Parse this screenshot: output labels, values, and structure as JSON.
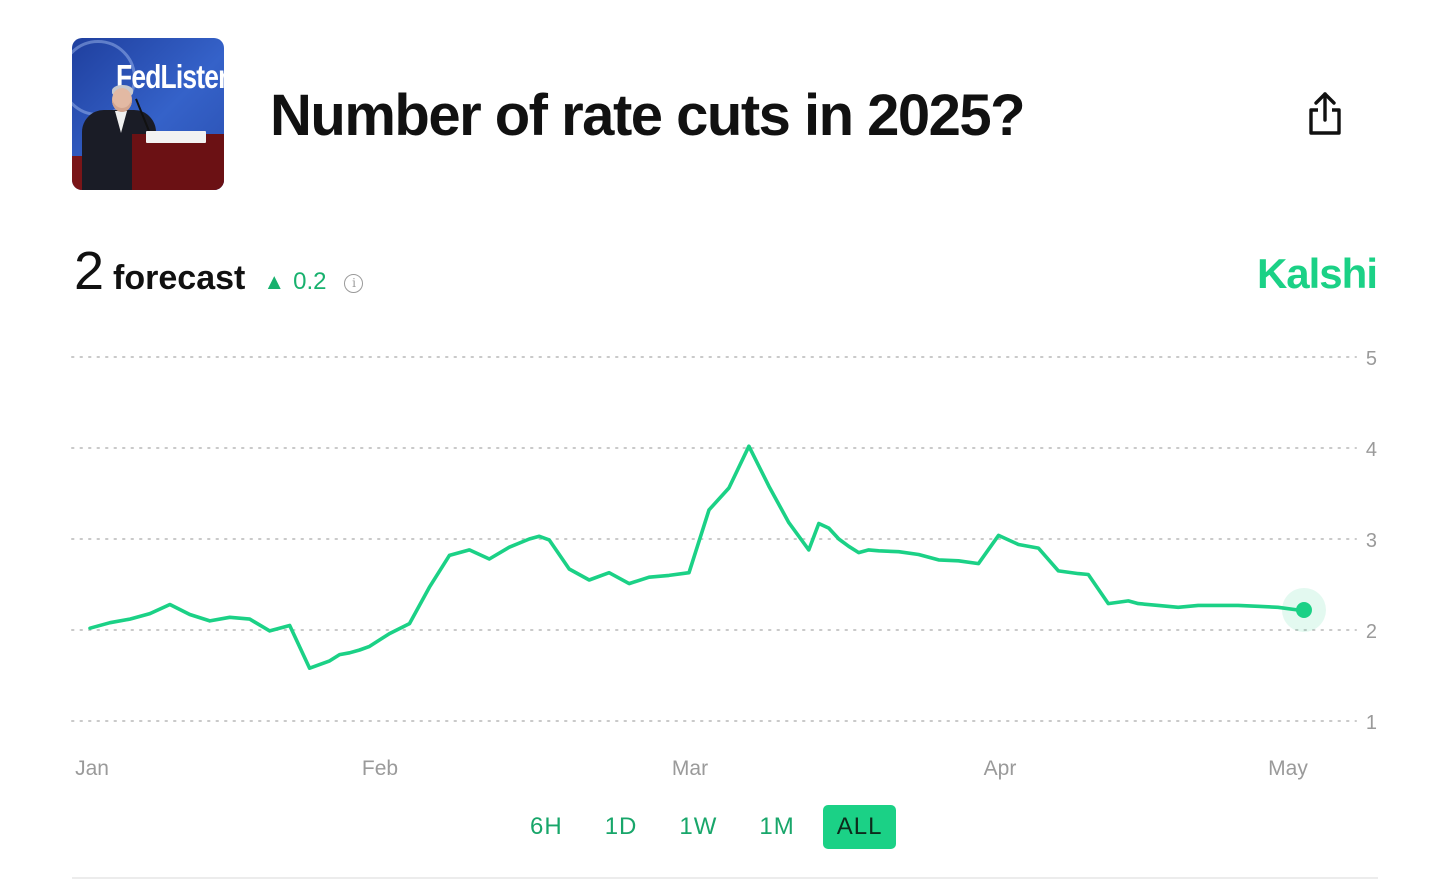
{
  "header": {
    "title": "Number of rate cuts in 2025?",
    "thumbnail_logo": "FedListens"
  },
  "forecast": {
    "value": "2",
    "label": "forecast",
    "change": "0.2",
    "change_direction": "up"
  },
  "brand": "Kalshi",
  "colors": {
    "accent": "#1bd186",
    "line": "#1bd186",
    "text": "#111111"
  },
  "icons": [
    "share-icon",
    "info-icon",
    "triangle-up-icon"
  ],
  "tabs": [
    {
      "label": "6H",
      "active": false
    },
    {
      "label": "1D",
      "active": false
    },
    {
      "label": "1W",
      "active": false
    },
    {
      "label": "1M",
      "active": false
    },
    {
      "label": "ALL",
      "active": true
    }
  ],
  "chart_data": {
    "type": "line",
    "title": "",
    "xlabel": "",
    "ylabel": "",
    "ylim": [
      1,
      5
    ],
    "yticks": [
      1,
      2,
      3,
      4,
      5
    ],
    "y_axis_side": "right",
    "grid": "dotted horizontal",
    "xticks": [
      {
        "label": "Jan",
        "date": "2025-01-01"
      },
      {
        "label": "Feb",
        "date": "2025-02-01"
      },
      {
        "label": "Mar",
        "date": "2025-03-01"
      },
      {
        "label": "Apr",
        "date": "2025-04-01"
      },
      {
        "label": "May",
        "date": "2025-05-01"
      }
    ],
    "series": [
      {
        "x": [
          "2025-01-01",
          "2025-01-03",
          "2025-01-05",
          "2025-01-07",
          "2025-01-09",
          "2025-01-11",
          "2025-01-13",
          "2025-01-15",
          "2025-01-17",
          "2025-01-19",
          "2025-01-21",
          "2025-01-23",
          "2025-01-25",
          "2025-01-26",
          "2025-01-27",
          "2025-01-28",
          "2025-01-29",
          "2025-01-31",
          "2025-02-02",
          "2025-02-04",
          "2025-02-06",
          "2025-02-08",
          "2025-02-10",
          "2025-02-12",
          "2025-02-14",
          "2025-02-15",
          "2025-02-16",
          "2025-02-18",
          "2025-02-20",
          "2025-02-22",
          "2025-02-24",
          "2025-02-26",
          "2025-02-28",
          "2025-03-02",
          "2025-03-04",
          "2025-03-06",
          "2025-03-08",
          "2025-03-10",
          "2025-03-12",
          "2025-03-14",
          "2025-03-15",
          "2025-03-16",
          "2025-03-17",
          "2025-03-18",
          "2025-03-19",
          "2025-03-20",
          "2025-03-21",
          "2025-03-23",
          "2025-03-25",
          "2025-03-27",
          "2025-03-29",
          "2025-03-31",
          "2025-04-02",
          "2025-04-04",
          "2025-04-06",
          "2025-04-08",
          "2025-04-10",
          "2025-04-11",
          "2025-04-13",
          "2025-04-15",
          "2025-04-16",
          "2025-04-18",
          "2025-04-20",
          "2025-04-22",
          "2025-04-24",
          "2025-04-26",
          "2025-04-28",
          "2025-04-30",
          "2025-05-02"
        ],
        "values": [
          2.02,
          2.08,
          2.12,
          2.18,
          2.28,
          2.17,
          2.1,
          2.14,
          2.12,
          1.99,
          2.05,
          1.58,
          1.66,
          1.73,
          1.75,
          1.78,
          1.82,
          1.96,
          2.07,
          2.47,
          2.82,
          2.88,
          2.78,
          2.91,
          3.0,
          3.03,
          2.99,
          2.67,
          2.55,
          2.63,
          2.51,
          2.58,
          2.6,
          2.63,
          3.32,
          3.56,
          4.02,
          3.58,
          3.18,
          2.88,
          3.17,
          3.12,
          3.0,
          2.92,
          2.85,
          2.88,
          2.87,
          2.86,
          2.83,
          2.77,
          2.76,
          2.73,
          3.04,
          2.94,
          2.9,
          2.65,
          2.62,
          2.61,
          2.29,
          2.32,
          2.29,
          2.27,
          2.25,
          2.27,
          2.27,
          2.27,
          2.26,
          2.25,
          2.22
        ]
      }
    ]
  }
}
